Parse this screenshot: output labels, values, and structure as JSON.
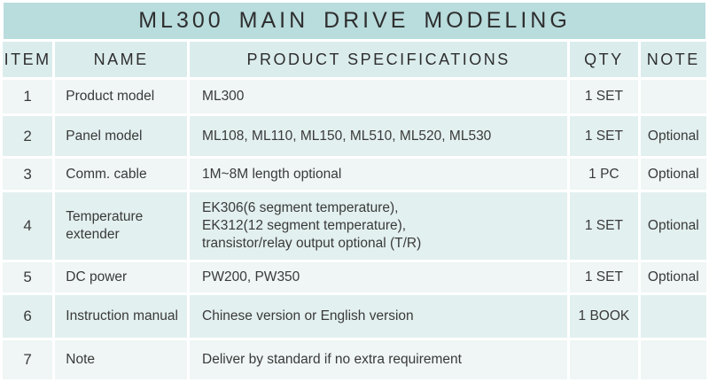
{
  "title": "ML300 MAIN DRIVE MODELING",
  "table": {
    "columns": [
      "ITEM",
      "NAME",
      "PRODUCT SPECIFICATIONS",
      "QTY",
      "NOTE"
    ],
    "rows": [
      {
        "item": "1",
        "name": "Product model",
        "spec": "ML300",
        "qty": "1 SET",
        "note": ""
      },
      {
        "item": "2",
        "name": "Panel model",
        "spec": "ML108, ML110, ML150, ML510, ML520, ML530",
        "qty": "1 SET",
        "note": "Optional"
      },
      {
        "item": "3",
        "name": "Comm. cable",
        "spec": "1M~8M length optional",
        "qty": "1 PC",
        "note": "Optional"
      },
      {
        "item": "4",
        "name": "Temperature extender",
        "spec": "EK306(6 segment temperature),\nEK312(12 segment temperature),\ntransistor/relay output optional (T/R)",
        "qty": "1 SET",
        "note": "Optional"
      },
      {
        "item": "5",
        "name": "DC power",
        "spec": "PW200, PW350",
        "qty": "1 SET",
        "note": "Optional"
      },
      {
        "item": "6",
        "name": "Instruction manual",
        "spec": "Chinese version or English version",
        "qty": "1 BOOK",
        "note": ""
      },
      {
        "item": "7",
        "name": "Note",
        "spec": "Deliver by standard if no extra requirement",
        "qty": "",
        "note": ""
      }
    ]
  },
  "colors": {
    "title_bg": "#b9dcdd",
    "header_bg": "#dbecec",
    "row_even_bg": "#e2f0ef",
    "row_odd_bg": "#eff6f5",
    "gap": "#ffffff",
    "text": "#3a3a3a"
  }
}
